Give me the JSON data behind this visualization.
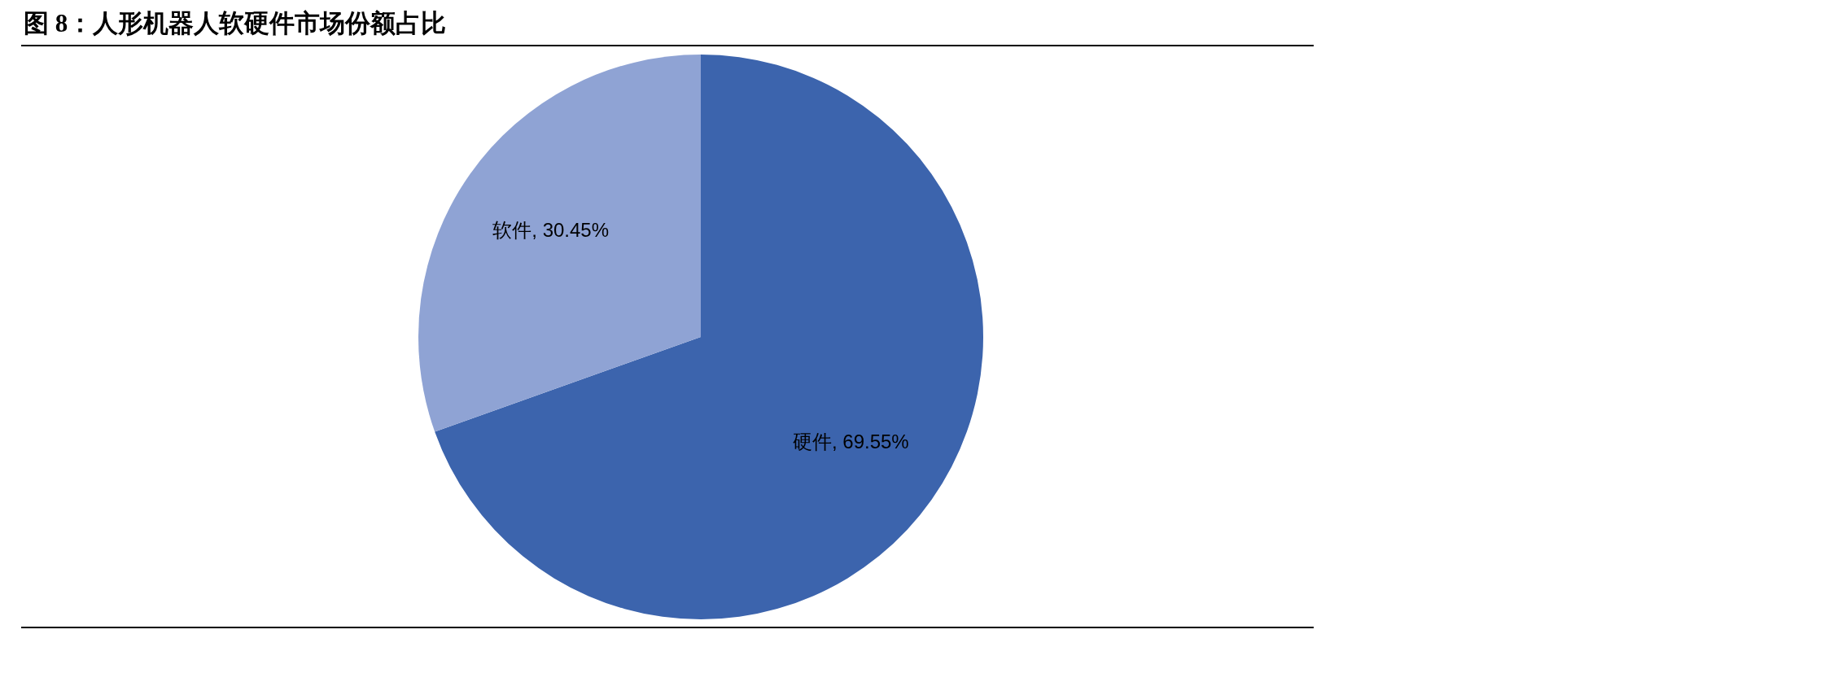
{
  "chart_data": {
    "type": "pie",
    "title": "图 8：人形机器人软硬件市场份额占比",
    "categories": [
      "硬件",
      "软件"
    ],
    "values": [
      69.55,
      30.45
    ],
    "value_labels": [
      "69.55%",
      "30.45%"
    ],
    "colors": [
      "#3c64ad",
      "#8fa3d4"
    ],
    "legend": false
  }
}
